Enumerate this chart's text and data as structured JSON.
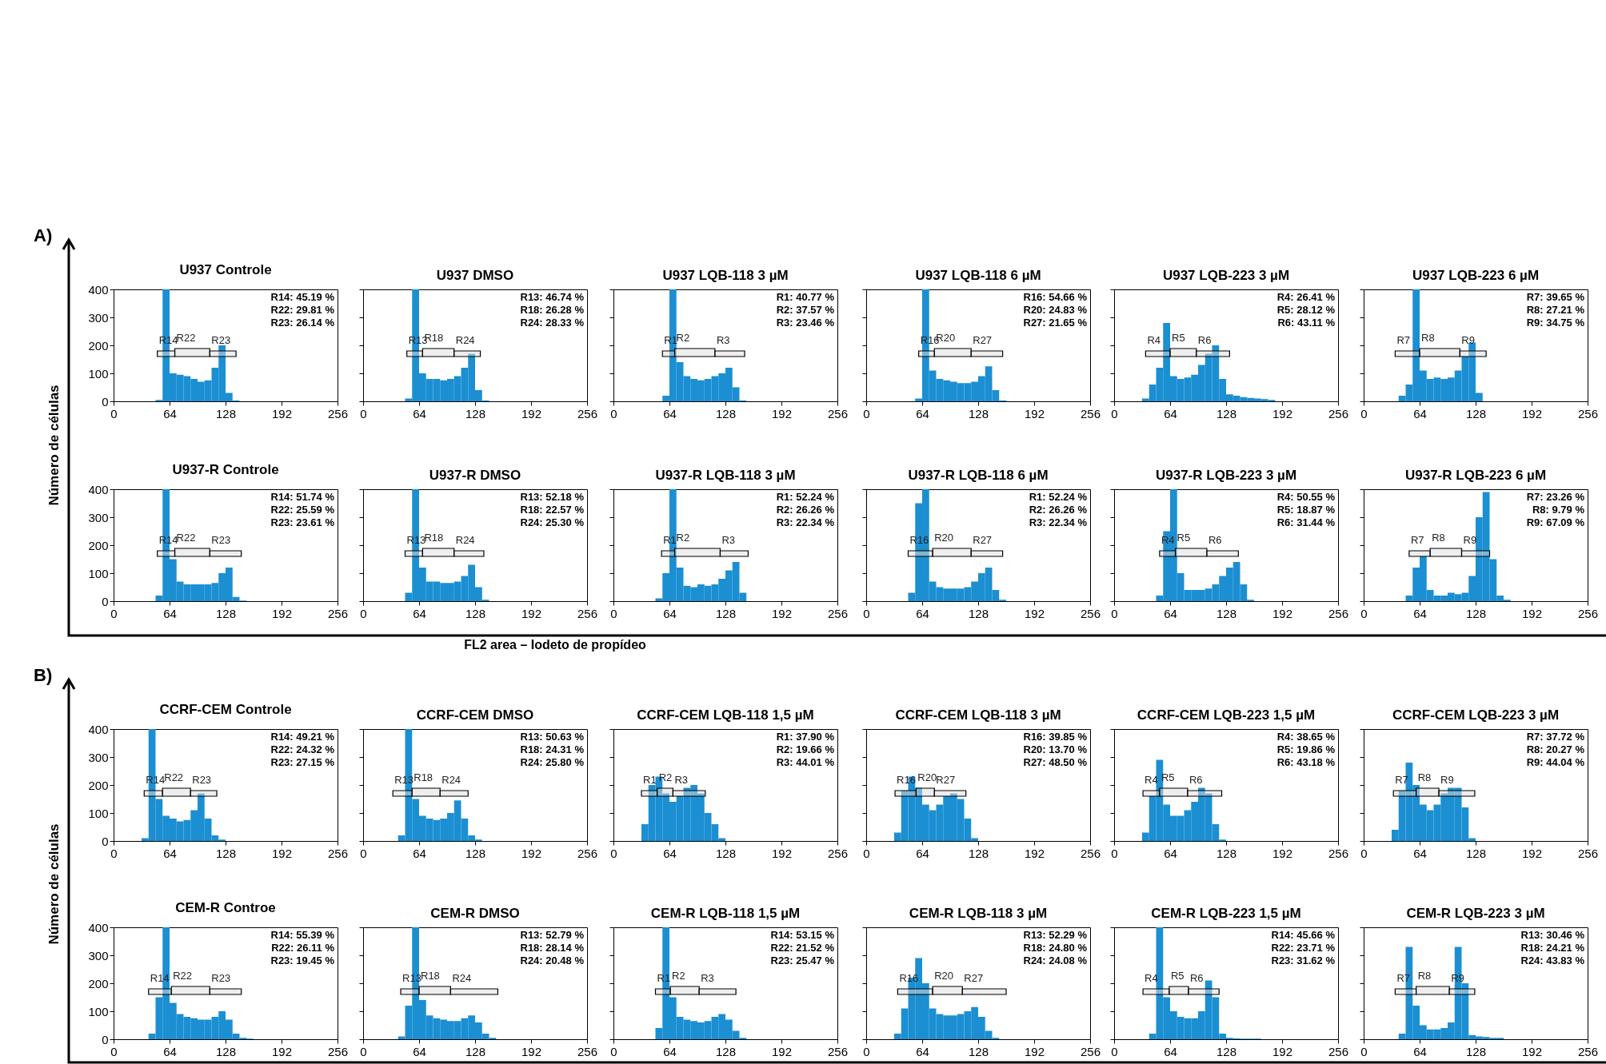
{
  "chart_data": [
    {
      "type": "histogram",
      "title": "U937 Controle",
      "ylabel": "Número de células",
      "color": "#1b8fd2",
      "bins": [
        24,
        32,
        40,
        48,
        56,
        64,
        72,
        80,
        88,
        96,
        104,
        112,
        120,
        128,
        136,
        144,
        152,
        160,
        168,
        176,
        184
      ],
      "values": [
        0,
        0,
        0,
        5,
        400,
        100,
        95,
        90,
        80,
        70,
        75,
        120,
        200,
        30,
        3,
        0,
        0,
        0,
        0,
        0
      ],
      "xlim": [
        0,
        256
      ],
      "ylim": [
        0,
        400
      ],
      "xticks": [
        0,
        64,
        128,
        192,
        256
      ],
      "yticks": [
        0,
        100,
        200,
        300,
        400
      ],
      "annotations": [
        "A)",
        "R14: 45.19 %",
        "R22: 29.81 %",
        "R23: 26.14 %"
      ],
      "bands": [
        {
          "axis": "x",
          "from": 50,
          "to": 70,
          "label": "R14"
        },
        {
          "axis": "x",
          "from": 70,
          "to": 110,
          "label": "R22"
        },
        {
          "axis": "x",
          "from": 110,
          "to": 140,
          "label": "R23"
        }
      ]
    },
    {
      "type": "histogram",
      "title": "U937 DMSO",
      "color": "#1b8fd2",
      "bins": [
        24,
        32,
        40,
        48,
        56,
        64,
        72,
        80,
        88,
        96,
        104,
        112,
        120,
        128,
        136,
        144,
        152,
        160,
        168,
        176,
        184
      ],
      "values": [
        0,
        0,
        0,
        10,
        400,
        100,
        80,
        80,
        75,
        80,
        90,
        120,
        170,
        40,
        3,
        0,
        0,
        0,
        0,
        0
      ],
      "xlim": [
        0,
        256
      ],
      "ylim": [
        0,
        400
      ],
      "xticks": [
        0,
        64,
        128,
        192,
        256
      ],
      "yticks": [
        0,
        100,
        200,
        300,
        400
      ],
      "tick_labels": "x",
      "annotations": [
        "R13: 46.74 %",
        "R18: 26.28 %",
        "R24: 28.33 %"
      ],
      "bands": [
        {
          "axis": "x",
          "from": 50,
          "to": 68,
          "label": "R13"
        },
        {
          "axis": "x",
          "from": 68,
          "to": 104,
          "label": "R18"
        },
        {
          "axis": "x",
          "from": 104,
          "to": 134,
          "label": "R24"
        }
      ]
    },
    {
      "type": "histogram",
      "title": "U937 LQB-118 3 µM",
      "color": "#1b8fd2",
      "bins": [
        24,
        32,
        40,
        48,
        56,
        64,
        72,
        80,
        88,
        96,
        104,
        112,
        120,
        128,
        136,
        144,
        152,
        160,
        168,
        176,
        184
      ],
      "values": [
        0,
        0,
        0,
        0,
        20,
        400,
        140,
        90,
        80,
        75,
        80,
        90,
        100,
        120,
        50,
        3,
        0,
        0,
        0,
        0
      ],
      "xlim": [
        0,
        256
      ],
      "ylim": [
        0,
        400
      ],
      "xticks": [
        0,
        64,
        128,
        192,
        256
      ],
      "yticks": [
        0,
        100,
        200,
        300,
        400
      ],
      "tick_labels": "x",
      "annotations": [
        "R1: 40.77 %",
        "R2: 37.57 %",
        "R3: 23.46 %"
      ],
      "bands": [
        {
          "axis": "x",
          "from": 56,
          "to": 70,
          "label": "R1"
        },
        {
          "axis": "x",
          "from": 70,
          "to": 116,
          "label": "R2"
        },
        {
          "axis": "x",
          "from": 116,
          "to": 150,
          "label": "R3"
        }
      ]
    },
    {
      "type": "histogram",
      "title": "U937 LQB-118 6 µM",
      "color": "#1b8fd2",
      "bins": [
        24,
        32,
        40,
        48,
        56,
        64,
        72,
        80,
        88,
        96,
        104,
        112,
        120,
        128,
        136,
        144,
        152,
        160,
        168,
        176,
        184
      ],
      "values": [
        0,
        0,
        0,
        0,
        10,
        400,
        110,
        80,
        75,
        70,
        65,
        65,
        70,
        90,
        125,
        40,
        3,
        0,
        0,
        0
      ],
      "xlim": [
        0,
        256
      ],
      "ylim": [
        0,
        400
      ],
      "xticks": [
        0,
        64,
        128,
        192,
        256
      ],
      "yticks": [
        0,
        100,
        200,
        300,
        400
      ],
      "tick_labels": "x",
      "annotations": [
        "R16: 54.66 %",
        "R20: 24.83 %",
        "R27: 21.65 %"
      ],
      "bands": [
        {
          "axis": "x",
          "from": 60,
          "to": 78,
          "label": "R16"
        },
        {
          "axis": "x",
          "from": 78,
          "to": 120,
          "label": "R20"
        },
        {
          "axis": "x",
          "from": 120,
          "to": 156,
          "label": "R27"
        }
      ]
    },
    {
      "type": "histogram",
      "title": "U937 LQB-223 3 µM",
      "color": "#1b8fd2",
      "bins": [
        24,
        32,
        40,
        48,
        56,
        64,
        72,
        80,
        88,
        96,
        104,
        112,
        120,
        128,
        136,
        144,
        152,
        160,
        168,
        176,
        184
      ],
      "values": [
        0,
        10,
        60,
        120,
        280,
        90,
        80,
        85,
        95,
        130,
        170,
        200,
        80,
        25,
        20,
        15,
        12,
        10,
        8,
        5
      ],
      "xlim": [
        0,
        256
      ],
      "ylim": [
        0,
        400
      ],
      "xticks": [
        0,
        64,
        128,
        192,
        256
      ],
      "yticks": [
        0,
        100,
        200,
        300,
        400
      ],
      "tick_labels": "x",
      "annotations": [
        "R4: 26.41 %",
        "R5: 28.12 %",
        "R6: 43.11 %"
      ],
      "bands": [
        {
          "axis": "x",
          "from": 36,
          "to": 64,
          "label": "R4"
        },
        {
          "axis": "x",
          "from": 64,
          "to": 94,
          "label": "R5"
        },
        {
          "axis": "x",
          "from": 94,
          "to": 132,
          "label": "R6"
        }
      ]
    },
    {
      "type": "histogram",
      "title": "U937 LQB-223 6 µM",
      "color": "#1b8fd2",
      "bins": [
        24,
        32,
        40,
        48,
        56,
        64,
        72,
        80,
        88,
        96,
        104,
        112,
        120,
        128,
        136,
        144,
        152,
        160,
        168,
        176,
        184
      ],
      "values": [
        0,
        0,
        20,
        60,
        400,
        110,
        80,
        85,
        80,
        85,
        110,
        160,
        210,
        30,
        0,
        0,
        0,
        0,
        0,
        0
      ],
      "xlim": [
        0,
        256
      ],
      "ylim": [
        0,
        400
      ],
      "xticks": [
        0,
        64,
        128,
        192,
        256
      ],
      "yticks": [
        0,
        100,
        200,
        300,
        400
      ],
      "tick_labels": "x",
      "annotations": [
        "R7: 39.65 %",
        "R8: 27.21 %",
        "R9: 34.75 %"
      ],
      "bands": [
        {
          "axis": "x",
          "from": 36,
          "to": 64,
          "label": "R7"
        },
        {
          "axis": "x",
          "from": 64,
          "to": 110,
          "label": "R8"
        },
        {
          "axis": "x",
          "from": 110,
          "to": 140,
          "label": "R9"
        }
      ]
    },
    {
      "type": "histogram",
      "title": "U937-R Controle",
      "color": "#1b8fd2",
      "bins": [
        24,
        32,
        40,
        48,
        56,
        64,
        72,
        80,
        88,
        96,
        104,
        112,
        120,
        128,
        136,
        144,
        152,
        160,
        168,
        176,
        184
      ],
      "values": [
        0,
        0,
        0,
        20,
        400,
        150,
        70,
        60,
        60,
        60,
        60,
        65,
        100,
        120,
        15,
        2,
        0,
        0,
        0,
        0
      ],
      "xlim": [
        0,
        256
      ],
      "ylim": [
        0,
        400
      ],
      "xticks": [
        0,
        64,
        128,
        192,
        256
      ],
      "yticks": [
        0,
        100,
        200,
        300,
        400
      ],
      "annotations": [
        "R14: 51.74 %",
        "R22: 25.59 %",
        "R23: 23.61 %"
      ],
      "bands": [
        {
          "axis": "x",
          "from": 50,
          "to": 70,
          "label": "R14"
        },
        {
          "axis": "x",
          "from": 70,
          "to": 110,
          "label": "R22"
        },
        {
          "axis": "x",
          "from": 110,
          "to": 146,
          "label": "R23"
        }
      ]
    },
    {
      "type": "histogram",
      "title": "U937-R DMSO",
      "xlabel": "FL2 area – Iodeto de propídeo",
      "color": "#1b8fd2",
      "bins": [
        24,
        32,
        40,
        48,
        56,
        64,
        72,
        80,
        88,
        96,
        104,
        112,
        120,
        128,
        136,
        144,
        152,
        160,
        168,
        176,
        184
      ],
      "values": [
        0,
        0,
        0,
        30,
        400,
        120,
        70,
        70,
        65,
        65,
        70,
        90,
        130,
        50,
        5,
        0,
        0,
        0,
        0,
        0
      ],
      "xlim": [
        0,
        256
      ],
      "ylim": [
        0,
        400
      ],
      "xticks": [
        0,
        64,
        128,
        192,
        256
      ],
      "yticks": [
        0,
        100,
        200,
        300,
        400
      ],
      "tick_labels": "x",
      "annotations": [
        "R13: 52.18 %",
        "R18: 22.57 %",
        "R24: 25.30 %"
      ],
      "bands": [
        {
          "axis": "x",
          "from": 48,
          "to": 68,
          "label": "R13"
        },
        {
          "axis": "x",
          "from": 68,
          "to": 104,
          "label": "R18"
        },
        {
          "axis": "x",
          "from": 104,
          "to": 138,
          "label": "R24"
        }
      ]
    },
    {
      "type": "histogram",
      "title": "U937-R LQB-118 3 µM",
      "color": "#1b8fd2",
      "bins": [
        24,
        32,
        40,
        48,
        56,
        64,
        72,
        80,
        88,
        96,
        104,
        112,
        120,
        128,
        136,
        144,
        152,
        160,
        168,
        176,
        184
      ],
      "values": [
        0,
        0,
        0,
        10,
        100,
        400,
        120,
        55,
        50,
        60,
        55,
        60,
        80,
        110,
        140,
        30,
        0,
        0,
        0,
        0
      ],
      "xlim": [
        0,
        256
      ],
      "ylim": [
        0,
        400
      ],
      "xticks": [
        0,
        64,
        128,
        192,
        256
      ],
      "yticks": [
        0,
        100,
        200,
        300,
        400
      ],
      "tick_labels": "x",
      "annotations": [
        "R1: 52.24 %",
        "R2: 26.26 %",
        "R3: 22.34 %"
      ],
      "bands": [
        {
          "axis": "x",
          "from": 55,
          "to": 70,
          "label": "R1"
        },
        {
          "axis": "x",
          "from": 70,
          "to": 122,
          "label": "R2"
        },
        {
          "axis": "x",
          "from": 122,
          "to": 154,
          "label": "R3"
        }
      ]
    },
    {
      "type": "histogram",
      "title": "U937-R LQB-118 6 µM",
      "color": "#1b8fd2",
      "bins": [
        24,
        32,
        40,
        48,
        56,
        64,
        72,
        80,
        88,
        96,
        104,
        112,
        120,
        128,
        136,
        144,
        152,
        160,
        168,
        176,
        184
      ],
      "values": [
        0,
        0,
        0,
        30,
        350,
        400,
        70,
        50,
        45,
        45,
        45,
        50,
        70,
        100,
        120,
        40,
        5,
        0,
        0,
        0
      ],
      "xlim": [
        0,
        256
      ],
      "ylim": [
        0,
        400
      ],
      "xticks": [
        0,
        64,
        128,
        192,
        256
      ],
      "yticks": [
        0,
        100,
        200,
        300,
        400
      ],
      "tick_labels": "x",
      "annotations": [
        "R1: 52.24 %",
        "R2: 26.26 %",
        "R3: 22.34 %"
      ],
      "bands": [
        {
          "axis": "x",
          "from": 48,
          "to": 76,
          "label": "R16"
        },
        {
          "axis": "x",
          "from": 76,
          "to": 120,
          "label": "R20"
        },
        {
          "axis": "x",
          "from": 120,
          "to": 156,
          "label": "R27"
        }
      ]
    },
    {
      "type": "histogram",
      "title": "U937-R LQB-223 3 µM",
      "color": "#1b8fd2",
      "bins": [
        24,
        32,
        40,
        48,
        56,
        64,
        72,
        80,
        88,
        96,
        104,
        112,
        120,
        128,
        136,
        144,
        152,
        160,
        168,
        176,
        184
      ],
      "values": [
        0,
        0,
        0,
        20,
        250,
        400,
        100,
        40,
        40,
        40,
        45,
        60,
        90,
        120,
        140,
        60,
        5,
        0,
        0,
        0
      ],
      "xlim": [
        0,
        256
      ],
      "ylim": [
        0,
        400
      ],
      "xticks": [
        0,
        64,
        128,
        192,
        256
      ],
      "yticks": [
        0,
        100,
        200,
        300,
        400
      ],
      "tick_labels": "x",
      "annotations": [
        "R4: 50.55 %",
        "R5: 18.87 %",
        "R6: 31.44 %"
      ],
      "bands": [
        {
          "axis": "x",
          "from": 52,
          "to": 70,
          "label": "R4"
        },
        {
          "axis": "x",
          "from": 70,
          "to": 106,
          "label": "R5"
        },
        {
          "axis": "x",
          "from": 106,
          "to": 142,
          "label": "R6"
        }
      ]
    },
    {
      "type": "histogram",
      "title": "U937-R LQB-223 6 µM",
      "color": "#1b8fd2",
      "bins": [
        24,
        32,
        40,
        48,
        56,
        64,
        72,
        80,
        88,
        96,
        104,
        112,
        120,
        128,
        136,
        144,
        152,
        160,
        168,
        176,
        184
      ],
      "values": [
        0,
        0,
        0,
        20,
        120,
        160,
        40,
        20,
        20,
        30,
        25,
        30,
        90,
        300,
        390,
        150,
        20,
        5,
        0,
        0
      ],
      "xlim": [
        0,
        256
      ],
      "ylim": [
        0,
        400
      ],
      "xticks": [
        0,
        64,
        128,
        192,
        256
      ],
      "yticks": [
        0,
        100,
        200,
        300,
        400
      ],
      "tick_labels": "x",
      "annotations": [
        "R7: 23.26 %",
        "R8: 9.79 %",
        "R9: 67.09 %"
      ],
      "bands": [
        {
          "axis": "x",
          "from": 52,
          "to": 76,
          "label": "R7"
        },
        {
          "axis": "x",
          "from": 76,
          "to": 112,
          "label": "R8"
        },
        {
          "axis": "x",
          "from": 112,
          "to": 144,
          "label": "R9"
        }
      ]
    },
    {
      "type": "histogram",
      "title": "CCRF-CEM Controle",
      "ylabel": "Número de células",
      "color": "#1b8fd2",
      "bins": [
        24,
        32,
        40,
        48,
        56,
        64,
        72,
        80,
        88,
        96,
        104,
        112,
        120,
        128,
        136,
        144,
        152,
        160,
        168,
        176,
        184
      ],
      "values": [
        0,
        10,
        400,
        150,
        90,
        80,
        70,
        75,
        110,
        170,
        80,
        20,
        5,
        0,
        0,
        0,
        0,
        0,
        0,
        0
      ],
      "xlim": [
        0,
        256
      ],
      "ylim": [
        0,
        400
      ],
      "xticks": [
        0,
        64,
        128,
        192,
        256
      ],
      "yticks": [
        0,
        100,
        200,
        300,
        400
      ],
      "annotations": [
        "B)",
        "R14: 49.21 %",
        "R22: 24.32 %",
        "R23: 27.15 %"
      ],
      "bands": [
        {
          "axis": "x",
          "from": 35,
          "to": 56,
          "label": "R14"
        },
        {
          "axis": "x",
          "from": 56,
          "to": 88,
          "label": "R22"
        },
        {
          "axis": "x",
          "from": 88,
          "to": 118,
          "label": "R23"
        }
      ]
    },
    {
      "type": "histogram",
      "title": "CCRF-CEM DMSO",
      "color": "#1b8fd2",
      "bins": [
        24,
        32,
        40,
        48,
        56,
        64,
        72,
        80,
        88,
        96,
        104,
        112,
        120,
        128,
        136,
        144,
        152,
        160,
        168,
        176,
        184
      ],
      "values": [
        0,
        0,
        20,
        400,
        150,
        90,
        80,
        75,
        80,
        100,
        145,
        80,
        20,
        5,
        0,
        0,
        0,
        0,
        0,
        0
      ],
      "xlim": [
        0,
        256
      ],
      "ylim": [
        0,
        400
      ],
      "xticks": [
        0,
        64,
        128,
        192,
        256
      ],
      "yticks": [
        0,
        100,
        200,
        300,
        400
      ],
      "tick_labels": "x",
      "annotations": [
        "R13: 50.63 %",
        "R18: 24.31 %",
        "R24: 25.80 %"
      ],
      "bands": [
        {
          "axis": "x",
          "from": 34,
          "to": 56,
          "label": "R13"
        },
        {
          "axis": "x",
          "from": 56,
          "to": 88,
          "label": "R18"
        },
        {
          "axis": "x",
          "from": 88,
          "to": 120,
          "label": "R24"
        }
      ]
    },
    {
      "type": "histogram",
      "title": "CCRF-CEM LQB-118 1,5 µM",
      "color": "#1b8fd2",
      "bins": [
        24,
        32,
        40,
        48,
        56,
        64,
        72,
        80,
        88,
        96,
        104,
        112,
        120,
        128,
        136,
        144,
        152,
        160,
        168,
        176,
        184
      ],
      "values": [
        0,
        60,
        200,
        230,
        170,
        140,
        160,
        190,
        200,
        170,
        100,
        60,
        10,
        0,
        0,
        0,
        0,
        0,
        0,
        0
      ],
      "xlim": [
        0,
        256
      ],
      "ylim": [
        0,
        400
      ],
      "xticks": [
        0,
        64,
        128,
        192,
        256
      ],
      "yticks": [
        0,
        100,
        200,
        300,
        400
      ],
      "tick_labels": "x",
      "annotations": [
        "R1: 37.90 %",
        "R2: 19.66 %",
        "R3: 44.01 %"
      ],
      "bands": [
        {
          "axis": "x",
          "from": 32,
          "to": 50,
          "label": "R1"
        },
        {
          "axis": "x",
          "from": 50,
          "to": 68,
          "label": "R2"
        },
        {
          "axis": "x",
          "from": 68,
          "to": 105,
          "label": "R3"
        }
      ]
    },
    {
      "type": "histogram",
      "title": "CCRF-CEM LQB-118 3 µM",
      "color": "#1b8fd2",
      "bins": [
        24,
        32,
        40,
        48,
        56,
        64,
        72,
        80,
        88,
        96,
        104,
        112,
        120,
        128,
        136,
        144,
        152,
        160,
        168,
        176,
        184
      ],
      "values": [
        0,
        30,
        180,
        230,
        190,
        130,
        110,
        130,
        160,
        170,
        150,
        80,
        10,
        0,
        0,
        0,
        0,
        0,
        0,
        0
      ],
      "xlim": [
        0,
        256
      ],
      "ylim": [
        0,
        400
      ],
      "xticks": [
        0,
        64,
        128,
        192,
        256
      ],
      "yticks": [
        0,
        100,
        200,
        300,
        400
      ],
      "tick_labels": "x",
      "annotations": [
        "R16: 39.85 %",
        "R20: 13.70 %",
        "R27: 48.50 %"
      ],
      "bands": [
        {
          "axis": "x",
          "from": 33,
          "to": 57,
          "label": "R16"
        },
        {
          "axis": "x",
          "from": 57,
          "to": 78,
          "label": "R20"
        },
        {
          "axis": "x",
          "from": 78,
          "to": 114,
          "label": "R27"
        }
      ]
    },
    {
      "type": "histogram",
      "title": "CCRF-CEM LQB-223 1,5 µM",
      "color": "#1b8fd2",
      "bins": [
        24,
        32,
        40,
        48,
        56,
        64,
        72,
        80,
        88,
        96,
        104,
        112,
        120,
        128,
        136,
        144,
        152,
        160,
        168,
        176,
        184
      ],
      "values": [
        0,
        30,
        160,
        290,
        130,
        90,
        90,
        110,
        140,
        190,
        170,
        60,
        5,
        0,
        0,
        0,
        0,
        0,
        0,
        0
      ],
      "xlim": [
        0,
        256
      ],
      "ylim": [
        0,
        400
      ],
      "xticks": [
        0,
        64,
        128,
        192,
        256
      ],
      "yticks": [
        0,
        100,
        200,
        300,
        400
      ],
      "tick_labels": "x",
      "annotations": [
        "R4: 38.65 %",
        "R5: 19.86 %",
        "R6: 43.18 %"
      ],
      "bands": [
        {
          "axis": "x",
          "from": 33,
          "to": 52,
          "label": "R4"
        },
        {
          "axis": "x",
          "from": 52,
          "to": 84,
          "label": "R5"
        },
        {
          "axis": "x",
          "from": 84,
          "to": 123,
          "label": "R6"
        }
      ]
    },
    {
      "type": "histogram",
      "title": "CCRF-CEM LQB-223 3 µM",
      "color": "#1b8fd2",
      "bins": [
        24,
        32,
        40,
        48,
        56,
        64,
        72,
        80,
        88,
        96,
        104,
        112,
        120,
        128,
        136,
        144,
        152,
        160,
        168,
        176,
        184
      ],
      "values": [
        0,
        40,
        180,
        280,
        200,
        130,
        110,
        130,
        170,
        190,
        190,
        120,
        10,
        0,
        0,
        0,
        0,
        0,
        0,
        0
      ],
      "xlim": [
        0,
        256
      ],
      "ylim": [
        0,
        400
      ],
      "xticks": [
        0,
        64,
        128,
        192,
        256
      ],
      "yticks": [
        0,
        100,
        200,
        300,
        400
      ],
      "tick_labels": "x",
      "annotations": [
        "R7: 37.72 %",
        "R8: 20.27 %",
        "R9: 44.04 %"
      ],
      "bands": [
        {
          "axis": "x",
          "from": 34,
          "to": 60,
          "label": "R7"
        },
        {
          "axis": "x",
          "from": 60,
          "to": 86,
          "label": "R8"
        },
        {
          "axis": "x",
          "from": 86,
          "to": 127,
          "label": "R9"
        }
      ]
    },
    {
      "type": "histogram",
      "title": "CEM-R Controe",
      "color": "#1b8fd2",
      "bins": [
        24,
        32,
        40,
        48,
        56,
        64,
        72,
        80,
        88,
        96,
        104,
        112,
        120,
        128,
        136,
        144,
        152,
        160,
        168,
        176,
        184
      ],
      "values": [
        0,
        0,
        20,
        150,
        400,
        130,
        90,
        80,
        75,
        70,
        70,
        80,
        100,
        70,
        20,
        5,
        2,
        0,
        0,
        0
      ],
      "xlim": [
        0,
        256
      ],
      "ylim": [
        0,
        400
      ],
      "xticks": [
        0,
        64,
        128,
        192,
        256
      ],
      "yticks": [
        0,
        100,
        200,
        300,
        400
      ],
      "annotations": [
        "R14: 55.39 %",
        "R22: 26.11 %",
        "R23: 19.45 %"
      ],
      "bands": [
        {
          "axis": "x",
          "from": 40,
          "to": 66,
          "label": "R14"
        },
        {
          "axis": "x",
          "from": 66,
          "to": 110,
          "label": "R22"
        },
        {
          "axis": "x",
          "from": 110,
          "to": 146,
          "label": "R23"
        }
      ]
    },
    {
      "type": "histogram",
      "title": "CEM-R DMSO",
      "color": "#1b8fd2",
      "bins": [
        24,
        32,
        40,
        48,
        56,
        64,
        72,
        80,
        88,
        96,
        104,
        112,
        120,
        128,
        136,
        144,
        152,
        160,
        168,
        176,
        184
      ],
      "values": [
        0,
        0,
        10,
        120,
        400,
        140,
        85,
        75,
        70,
        65,
        65,
        75,
        85,
        60,
        20,
        5,
        0,
        0,
        0,
        0
      ],
      "xlim": [
        0,
        256
      ],
      "ylim": [
        0,
        400
      ],
      "xticks": [
        0,
        64,
        128,
        192,
        256
      ],
      "yticks": [
        0,
        100,
        200,
        300,
        400
      ],
      "tick_labels": "x",
      "annotations": [
        "R13: 52.79 %",
        "R18: 28.14 %",
        "R24: 20.48 %"
      ],
      "bands": [
        {
          "axis": "x",
          "from": 43,
          "to": 64,
          "label": "R13"
        },
        {
          "axis": "x",
          "from": 64,
          "to": 100,
          "label": "R18"
        },
        {
          "axis": "x",
          "from": 100,
          "to": 154,
          "label": "R24"
        }
      ]
    },
    {
      "type": "histogram",
      "title": "CEM-R LQB-118 1,5 µM",
      "color": "#1b8fd2",
      "bins": [
        24,
        32,
        40,
        48,
        56,
        64,
        72,
        80,
        88,
        96,
        104,
        112,
        120,
        128,
        136,
        144,
        152,
        160,
        168,
        176,
        184
      ],
      "values": [
        0,
        0,
        0,
        40,
        400,
        150,
        80,
        70,
        65,
        60,
        65,
        80,
        90,
        70,
        30,
        5,
        0,
        0,
        0,
        0
      ],
      "xlim": [
        0,
        256
      ],
      "ylim": [
        0,
        400
      ],
      "xticks": [
        0,
        64,
        128,
        192,
        256
      ],
      "yticks": [
        0,
        100,
        200,
        300,
        400
      ],
      "tick_labels": "x",
      "annotations": [
        "R14: 53.15 %",
        "R22: 21.52 %",
        "R23: 25.47 %"
      ],
      "bands": [
        {
          "axis": "x",
          "from": 48,
          "to": 65,
          "label": "R1"
        },
        {
          "axis": "x",
          "from": 65,
          "to": 98,
          "label": "R2"
        },
        {
          "axis": "x",
          "from": 98,
          "to": 140,
          "label": "R3"
        }
      ]
    },
    {
      "type": "histogram",
      "title": "CEM-R LQB-118 3 µM",
      "color": "#1b8fd2",
      "bins": [
        24,
        32,
        40,
        48,
        56,
        64,
        72,
        80,
        88,
        96,
        104,
        112,
        120,
        128,
        136,
        144,
        152,
        160,
        168,
        176,
        184
      ],
      "values": [
        0,
        20,
        110,
        220,
        290,
        200,
        110,
        90,
        85,
        85,
        90,
        100,
        115,
        80,
        30,
        5,
        0,
        0,
        0,
        0
      ],
      "xlim": [
        0,
        256
      ],
      "ylim": [
        0,
        400
      ],
      "xticks": [
        0,
        64,
        128,
        192,
        256
      ],
      "yticks": [
        0,
        100,
        200,
        300,
        400
      ],
      "tick_labels": "x",
      "annotations": [
        "R13: 52.29 %",
        "R18: 24.80 %",
        "R24: 24.08 %"
      ],
      "bands": [
        {
          "axis": "x",
          "from": 36,
          "to": 76,
          "label": "R16"
        },
        {
          "axis": "x",
          "from": 76,
          "to": 110,
          "label": "R20"
        },
        {
          "axis": "x",
          "from": 110,
          "to": 160,
          "label": "R27"
        }
      ]
    },
    {
      "type": "histogram",
      "title": "CEM-R LQB-223 1,5 µM",
      "color": "#1b8fd2",
      "bins": [
        24,
        32,
        40,
        48,
        56,
        64,
        72,
        80,
        88,
        96,
        104,
        112,
        120,
        128,
        136,
        144,
        152,
        160,
        168,
        176,
        184
      ],
      "values": [
        0,
        0,
        20,
        400,
        150,
        100,
        80,
        75,
        75,
        100,
        210,
        150,
        20,
        5,
        3,
        2,
        2,
        2,
        0,
        0
      ],
      "xlim": [
        0,
        256
      ],
      "ylim": [
        0,
        400
      ],
      "xticks": [
        0,
        64,
        128,
        192,
        256
      ],
      "yticks": [
        0,
        100,
        200,
        300,
        400
      ],
      "tick_labels": "x",
      "annotations": [
        "R14: 45.66 %",
        "R22: 23.71 %",
        "R23: 31.62 %"
      ],
      "bands": [
        {
          "axis": "x",
          "from": 33,
          "to": 63,
          "label": "R4"
        },
        {
          "axis": "x",
          "from": 63,
          "to": 85,
          "label": "R5"
        },
        {
          "axis": "x",
          "from": 85,
          "to": 120,
          "label": "R6"
        }
      ]
    },
    {
      "type": "histogram",
      "title": "CEM-R LQB-223 3 µM",
      "color": "#1b8fd2",
      "bins": [
        24,
        32,
        40,
        48,
        56,
        64,
        72,
        80,
        88,
        96,
        104,
        112,
        120,
        128,
        136,
        144,
        152,
        160,
        168,
        176,
        184
      ],
      "values": [
        0,
        0,
        20,
        330,
        120,
        50,
        35,
        35,
        40,
        60,
        330,
        200,
        15,
        10,
        8,
        5,
        5,
        0,
        0,
        0
      ],
      "xlim": [
        0,
        256
      ],
      "ylim": [
        0,
        400
      ],
      "xticks": [
        0,
        64,
        128,
        192,
        256
      ],
      "yticks": [
        0,
        100,
        200,
        300,
        400
      ],
      "tick_labels": "x",
      "annotations": [
        "R13: 30.46 %",
        "R18: 24.21 %",
        "R24: 43.83 %"
      ],
      "bands": [
        {
          "axis": "x",
          "from": 36,
          "to": 60,
          "label": "R7"
        },
        {
          "axis": "x",
          "from": 60,
          "to": 98,
          "label": "R8"
        },
        {
          "axis": "x",
          "from": 98,
          "to": 127,
          "label": "R9"
        }
      ]
    }
  ]
}
